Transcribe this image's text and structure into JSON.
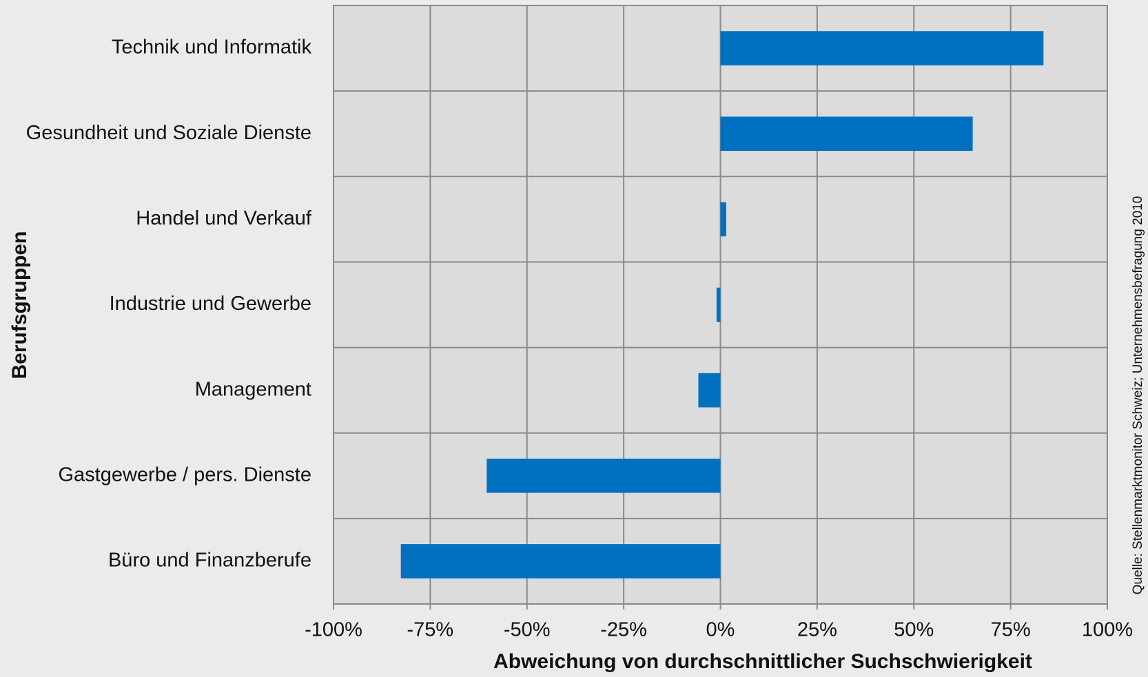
{
  "chart_data": {
    "type": "bar",
    "orientation": "horizontal",
    "x_label": "Abweichung von durchschnittlicher Suchschwierigkeit",
    "y_label": "Berufsgruppen",
    "source": "Quelle: Stellenmarktmonitor Schweiz;  Unternehmensbefragung  2010",
    "categories": [
      "Technik und Informatik",
      "Gesundheit und Soziale Dienste",
      "Handel und Verkauf",
      "Industrie und Gewerbe",
      "Management",
      "Gastgewerbe / pers. Dienste",
      "Büro und Finanzberufe"
    ],
    "values": [
      83.5,
      65.2,
      1.5,
      -1,
      -5.7,
      -60.4,
      -82.6
    ],
    "color": "#0070c0",
    "xlim": [
      -100,
      100
    ],
    "xticks": [
      {
        "value": -100,
        "label": "-100%"
      },
      {
        "value": -75,
        "label": "-75%"
      },
      {
        "value": -50,
        "label": "-50%"
      },
      {
        "value": -25,
        "label": "-25%"
      },
      {
        "value": 0,
        "label": "0%"
      },
      {
        "value": 25,
        "label": "25%"
      },
      {
        "value": 50,
        "label": "50%"
      },
      {
        "value": 75,
        "label": "75%"
      },
      {
        "value": 100,
        "label": "100%"
      }
    ],
    "grid": true
  }
}
